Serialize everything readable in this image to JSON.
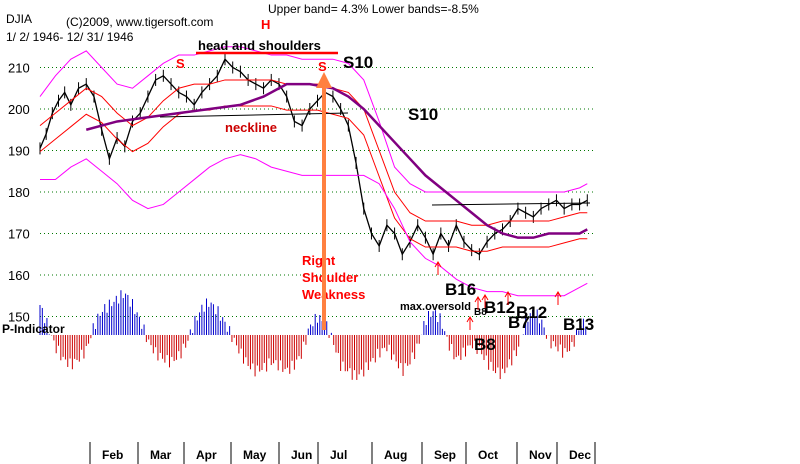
{
  "header": {
    "symbol": "DJIA",
    "copyright": "(C)2009, www.tigersoft.com",
    "date_range": "1/ 2/ 1946- 12/ 31/ 1946",
    "bands": "Upper band= 4.3%  Lower bands=-8.5%"
  },
  "chart_data": {
    "type": "line",
    "title": "DJIA",
    "y_ticks": [
      150,
      160,
      170,
      180,
      190,
      200,
      210
    ],
    "ylim": [
      142,
      222
    ],
    "x_ticks": [
      "Feb",
      "Mar",
      "Apr",
      "May",
      "Jun",
      "Jul",
      "Aug",
      "Sep",
      "Oct",
      "Nov",
      "Dec"
    ],
    "grid": true,
    "series": [
      {
        "name": "DJIA",
        "x": [
          0,
          4,
          8,
          12,
          16,
          20,
          25,
          30,
          35,
          40,
          45,
          50,
          55,
          60,
          65,
          70,
          75,
          80,
          85,
          90,
          95,
          100,
          105,
          110,
          115,
          120,
          125,
          130,
          135,
          140,
          145,
          150,
          155,
          160,
          165,
          170,
          175,
          180,
          185,
          190,
          195,
          200,
          205,
          210,
          215,
          220,
          225,
          230,
          235,
          240,
          245,
          250,
          255,
          260,
          265,
          270,
          275,
          280,
          285,
          290,
          295,
          300,
          305,
          310,
          315,
          320,
          325,
          330,
          335,
          340,
          345,
          350,
          355
        ],
        "y": [
          190.5,
          194,
          199,
          202,
          204,
          201,
          205,
          206,
          203,
          195,
          188,
          193,
          191,
          197,
          199,
          203,
          207,
          208,
          206,
          204,
          203,
          201,
          204,
          206,
          208,
          212,
          210,
          209,
          207,
          206,
          205,
          207,
          206,
          203,
          197,
          196,
          200,
          202,
          204,
          203,
          200,
          196,
          187,
          176,
          170,
          167,
          172,
          170,
          165,
          168,
          172,
          169,
          165,
          170,
          167,
          172,
          168,
          166,
          165,
          168,
          170,
          171,
          173,
          176,
          175,
          174,
          176,
          177,
          178,
          176,
          177,
          177,
          178
        ]
      },
      {
        "name": "Upper band",
        "x": [
          0,
          10,
          20,
          30,
          40,
          50,
          60,
          70,
          80,
          90,
          100,
          110,
          120,
          130,
          140,
          150,
          160,
          170,
          180,
          190,
          200,
          210,
          220,
          230,
          240,
          250,
          260,
          270,
          280,
          290,
          300,
          310,
          320,
          330,
          340,
          350,
          355
        ],
        "y": [
          203,
          208,
          212,
          214,
          210,
          206,
          205,
          208,
          211,
          213,
          213,
          214,
          215,
          215,
          214,
          213,
          213,
          212,
          212,
          212,
          211,
          207,
          197,
          186,
          182,
          180,
          180,
          180,
          180,
          180,
          180,
          180,
          180,
          180,
          180,
          181,
          182
        ]
      },
      {
        "name": "Middle line",
        "x": [
          0,
          10,
          20,
          30,
          40,
          50,
          60,
          70,
          80,
          90,
          100,
          110,
          120,
          130,
          140,
          150,
          160,
          170,
          180,
          190,
          200,
          210,
          220,
          230,
          240,
          250,
          260,
          270,
          280,
          290,
          300,
          310,
          320,
          330,
          340,
          350,
          355
        ],
        "y": [
          196,
          199,
          202,
          205,
          203,
          199,
          196,
          198,
          202,
          205,
          206,
          206,
          207,
          207,
          207,
          207,
          206,
          206,
          206,
          205,
          204,
          200,
          190,
          180,
          175,
          173,
          173,
          173,
          172,
          172,
          173,
          173,
          173,
          173,
          174,
          175,
          175
        ]
      },
      {
        "name": "Lower band",
        "x": [
          0,
          10,
          20,
          30,
          40,
          50,
          60,
          70,
          80,
          90,
          100,
          110,
          120,
          130,
          140,
          150,
          160,
          170,
          180,
          190,
          200,
          210,
          220,
          230,
          240,
          250,
          260,
          270,
          280,
          290,
          300,
          310,
          320,
          330,
          340,
          350,
          355
        ],
        "y": [
          183,
          183,
          186,
          188,
          185,
          182,
          178,
          176,
          177,
          180,
          183,
          186,
          188,
          189,
          188,
          186,
          185,
          184,
          184,
          184,
          184,
          184,
          182,
          176,
          168,
          164,
          162,
          159,
          157,
          156,
          156,
          155,
          155,
          155,
          155,
          157,
          158
        ]
      },
      {
        "name": "Moving average",
        "x": [
          30,
          50,
          70,
          90,
          110,
          130,
          145,
          160,
          175,
          190,
          200,
          210,
          220,
          230,
          240,
          250,
          260,
          270,
          280,
          290,
          300,
          310,
          320,
          330,
          340,
          350,
          355
        ],
        "y": [
          195,
          197,
          198,
          199,
          200,
          201,
          203,
          206,
          206,
          205,
          203,
          200,
          196,
          192,
          188,
          184,
          181,
          178,
          175,
          172,
          170,
          169,
          169,
          170,
          170,
          170,
          171
        ]
      }
    ],
    "p_indicator": {
      "label": "P-Indicator",
      "x": [
        0,
        5,
        10,
        15,
        20,
        25,
        30,
        35,
        40,
        45,
        50,
        55,
        60,
        65,
        70,
        75,
        80,
        85,
        90,
        95,
        100,
        105,
        110,
        115,
        120,
        125,
        130,
        135,
        140,
        145,
        150,
        155,
        160,
        165,
        170,
        175,
        180,
        185,
        190,
        195,
        200,
        205,
        210,
        215,
        220,
        225,
        230,
        235,
        240,
        245,
        250,
        255,
        260,
        265,
        270,
        275,
        280,
        285,
        290,
        295,
        300,
        305,
        310,
        315,
        320,
        325,
        330,
        335,
        340,
        345,
        350,
        355
      ],
      "values": [
        10,
        3,
        -4,
        -8,
        -10,
        -8,
        -5,
        3,
        8,
        10,
        12,
        14,
        10,
        5,
        -2,
        -6,
        -8,
        -9,
        -7,
        -3,
        4,
        9,
        11,
        8,
        4,
        -1,
        -6,
        -10,
        -12,
        -11,
        -9,
        -10,
        -12,
        -10,
        -6,
        3,
        6,
        4,
        -2,
        -10,
        -12,
        -14,
        -12,
        -9,
        -6,
        -4,
        -8,
        -12,
        -9,
        -4,
        5,
        8,
        5,
        -3,
        -8,
        -6,
        -3,
        -5,
        -9,
        -12,
        -13,
        -9,
        -5,
        5,
        8,
        5,
        -2,
        -4,
        -6,
        -4,
        3,
        5
      ]
    },
    "annotations": [
      {
        "text": "head and shoulders",
        "color": "#000000"
      },
      {
        "text": "H",
        "color": "#ff0000"
      },
      {
        "text": "S",
        "color": "#ff0000"
      },
      {
        "text": "S",
        "color": "#ff0000"
      },
      {
        "text": "S10",
        "color": "#000000"
      },
      {
        "text": "S10",
        "color": "#000000"
      },
      {
        "text": "neckline",
        "color": "#cc0000"
      },
      {
        "text": "Right",
        "color": "#ff0000"
      },
      {
        "text": "Shoulder",
        "color": "#ff0000"
      },
      {
        "text": "Weakness",
        "color": "#ff0000"
      },
      {
        "text": "B16",
        "color": "#000000"
      },
      {
        "text": "B12",
        "color": "#000000"
      },
      {
        "text": "B7",
        "color": "#000000"
      },
      {
        "text": "B12",
        "color": "#000000"
      },
      {
        "text": "B13",
        "color": "#000000"
      },
      {
        "text": "B8",
        "color": "#000000"
      },
      {
        "text": "B8",
        "color": "#000000"
      },
      {
        "text": "max.oversold",
        "color": "#000000"
      }
    ]
  },
  "colors": {
    "price": "#000000",
    "upper_band": "#ff00ff",
    "inner_band": "#ff0000",
    "moving_average": "#800080",
    "indicator_positive": "#0000cc",
    "indicator_negative": "#cc0000",
    "grid": "#007700",
    "annotation_arrow": "#ff8040"
  }
}
